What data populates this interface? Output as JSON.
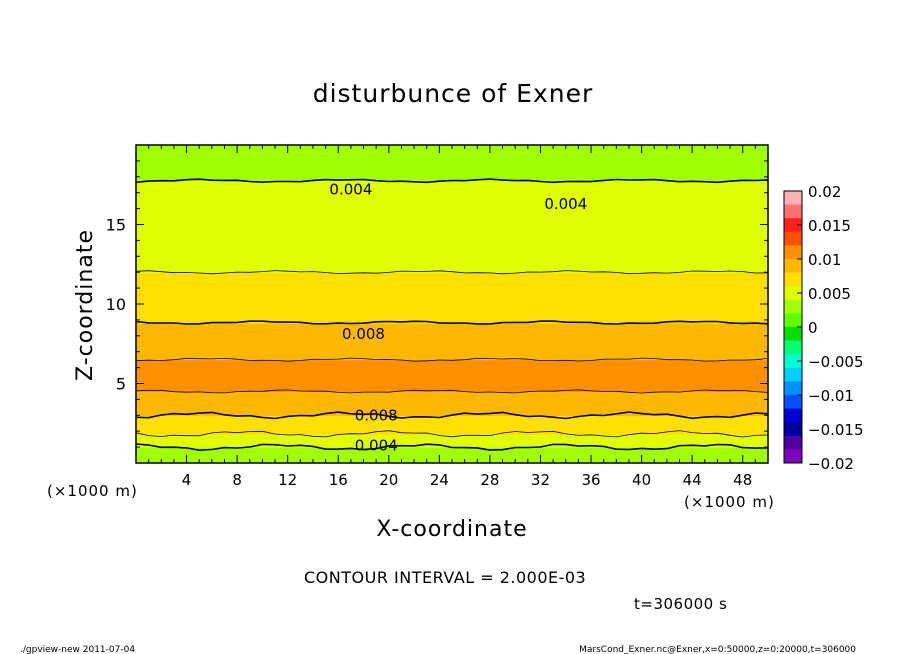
{
  "chart_data": {
    "type": "heatmap",
    "title": "disturbunce of Exner",
    "xlabel": "X-coordinate",
    "ylabel": "Z-coordinate",
    "x_unit": "(×1000 m)",
    "y_unit": "(×1000 m)",
    "xlim": [
      0,
      50
    ],
    "ylim": [
      0,
      20
    ],
    "x_ticks": [
      4,
      8,
      12,
      16,
      20,
      24,
      28,
      32,
      36,
      40,
      44,
      48
    ],
    "y_ticks": [
      5,
      10,
      15
    ],
    "colorbar": {
      "min": -0.02,
      "max": 0.02,
      "tick_values": [
        0.02,
        0.015,
        0.01,
        0.005,
        0,
        -0.005,
        -0.01,
        -0.015,
        -0.02
      ],
      "tick_labels": [
        "0.02",
        "0.015",
        "0.01",
        "0.005",
        "0",
        "−0.005",
        "−0.01",
        "−0.015",
        "−0.02"
      ],
      "colors": [
        "#ffb0b0",
        "#ff7070",
        "#ff2020",
        "#ff5000",
        "#ff9000",
        "#ffb800",
        "#ffe000",
        "#e0ff00",
        "#a0ff00",
        "#60ff00",
        "#00e000",
        "#00ff70",
        "#00ffd0",
        "#00d0ff",
        "#0090ff",
        "#0050ff",
        "#0000d0",
        "#0000a0",
        "#5000a0",
        "#8000c0"
      ]
    },
    "profile": {
      "z": [
        0,
        0.5,
        1,
        1.5,
        2,
        2.5,
        3,
        3.5,
        4,
        4.5,
        5,
        5.5,
        6,
        6.5,
        7,
        7.5,
        8,
        8.5,
        9,
        9.5,
        10,
        10.5,
        11,
        11.5,
        12,
        13,
        14,
        15,
        16,
        17,
        18,
        19,
        20
      ],
      "value": [
        0.002,
        0.003,
        0.004,
        0.005,
        0.0065,
        0.0075,
        0.008,
        0.0088,
        0.0095,
        0.01,
        0.0102,
        0.0102,
        0.0101,
        0.01,
        0.0097,
        0.0093,
        0.0088,
        0.0082,
        0.0079,
        0.0075,
        0.0072,
        0.0068,
        0.0065,
        0.0062,
        0.006,
        0.0055,
        0.0052,
        0.005,
        0.0047,
        0.0043,
        0.0039,
        0.0037,
        0.0036
      ]
    },
    "contour_interval": "CONTOUR INTERVAL = 2.000E-03",
    "contour_labels": [
      {
        "text": "0.004",
        "x": 17,
        "z": 17.2
      },
      {
        "text": "0.004",
        "x": 34,
        "z": 16.3
      },
      {
        "text": "0.008",
        "x": 18,
        "z": 8.1
      },
      {
        "text": "0.008",
        "x": 19,
        "z": 3.0
      },
      {
        "text": "0.004",
        "x": 19,
        "z": 1.1
      }
    ],
    "time_label": "t=306000 s"
  },
  "footer": {
    "left": "./gpview-new  2011-07-04",
    "right": "MarsCond_Exner.nc@Exner,x=0:50000,z=0:20000,t=306000"
  }
}
